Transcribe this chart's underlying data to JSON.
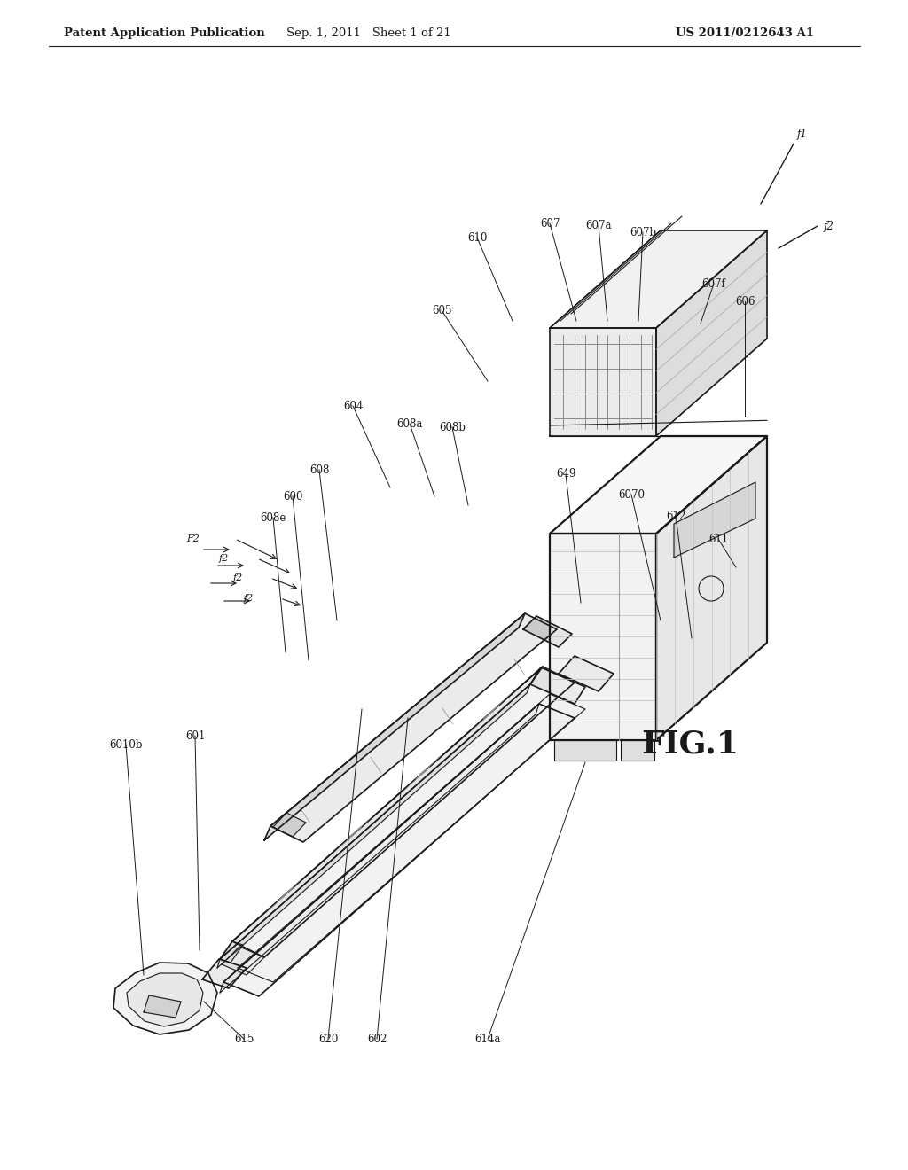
{
  "bg_color": "#ffffff",
  "header_left": "Patent Application Publication",
  "header_center": "Sep. 1, 2011   Sheet 1 of 21",
  "header_right": "US 2011/0212643 A1",
  "fig_label": "FIG.1",
  "header_fontsize": 9.5,
  "fig_label_fontsize": 24
}
